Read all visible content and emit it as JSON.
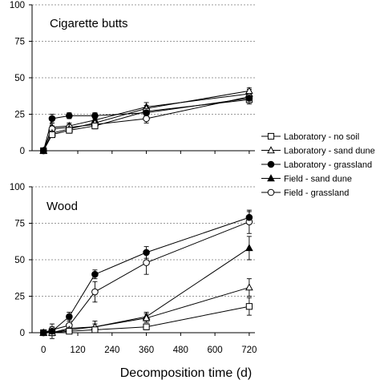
{
  "chart_data": {
    "type": "line",
    "xlabel": "Decomposition time (d)",
    "x_ticks": [
      0,
      120,
      240,
      360,
      480,
      600,
      720
    ],
    "xlim": [
      -40,
      740
    ],
    "legend": {
      "placement": "right",
      "entries": [
        {
          "name": "Laboratory - no soil",
          "marker": "square-open"
        },
        {
          "name": "Laboratory - sand dune",
          "marker": "triangle-open"
        },
        {
          "name": "Laboratory - grassland",
          "marker": "circle-filled"
        },
        {
          "name": "Field - sand dune",
          "marker": "triangle-filled"
        },
        {
          "name": "Field - grassland",
          "marker": "circle-open"
        }
      ]
    },
    "panels": [
      {
        "title": "Cigarette butts",
        "ylim": [
          0,
          100
        ],
        "y_ticks": [
          0,
          25,
          50,
          75,
          100
        ],
        "grid": "horizontal-dashed",
        "series": [
          {
            "name": "Laboratory - no soil",
            "marker": "square-open",
            "x": [
              0,
              30,
              90,
              180,
              360,
              720
            ],
            "y": [
              0,
              11,
              14,
              17,
              27,
              35
            ],
            "err": [
              0,
              2,
              2,
              2,
              2,
              3
            ]
          },
          {
            "name": "Laboratory - sand dune",
            "marker": "triangle-open",
            "x": [
              0,
              30,
              90,
              180,
              360,
              720
            ],
            "y": [
              0,
              12,
              15,
              19,
              29,
              41
            ],
            "err": [
              0,
              2,
              2,
              2,
              2,
              2
            ]
          },
          {
            "name": "Laboratory - grassland",
            "marker": "circle-filled",
            "x": [
              0,
              30,
              90,
              180,
              360,
              720
            ],
            "y": [
              0,
              22,
              24,
              24,
              26,
              36
            ],
            "err": [
              0,
              3,
              2,
              2,
              2,
              3
            ]
          },
          {
            "name": "Field - sand dune",
            "marker": "triangle-filled",
            "x": [
              0,
              30,
              90,
              180,
              360,
              720
            ],
            "y": [
              0,
              16,
              17,
              21,
              30,
              39
            ],
            "err": [
              0,
              3,
              2,
              3,
              3,
              3
            ]
          },
          {
            "name": "Field - grassland",
            "marker": "circle-open",
            "x": [
              0,
              30,
              90,
              180,
              360,
              720
            ],
            "y": [
              0,
              15,
              16,
              18,
              22,
              37
            ],
            "err": [
              0,
              2,
              2,
              2,
              3,
              4
            ]
          }
        ]
      },
      {
        "title": "Wood",
        "ylim": [
          0,
          100
        ],
        "y_ticks": [
          0,
          25,
          50,
          75,
          100
        ],
        "grid": "horizontal-dashed",
        "series": [
          {
            "name": "Laboratory - no soil",
            "marker": "square-open",
            "x": [
              0,
              30,
              90,
              180,
              360,
              720
            ],
            "y": [
              0,
              0,
              1,
              2,
              4,
              18
            ],
            "err": [
              0,
              1,
              1,
              1,
              2,
              6
            ]
          },
          {
            "name": "Laboratory - sand dune",
            "marker": "triangle-open",
            "x": [
              0,
              30,
              90,
              180,
              360,
              720
            ],
            "y": [
              0,
              0,
              2,
              4,
              10,
              31
            ],
            "err": [
              0,
              1,
              1,
              2,
              3,
              6
            ]
          },
          {
            "name": "Laboratory - grassland",
            "marker": "circle-filled",
            "x": [
              0,
              30,
              90,
              180,
              360,
              720
            ],
            "y": [
              0,
              1,
              11,
              40,
              55,
              79
            ],
            "err": [
              0,
              1,
              3,
              3,
              4,
              4
            ]
          },
          {
            "name": "Field - sand dune",
            "marker": "triangle-filled",
            "x": [
              0,
              30,
              90,
              180,
              360,
              720
            ],
            "y": [
              0,
              0,
              3,
              4,
              11,
              58
            ],
            "err": [
              0,
              4,
              3,
              4,
              3,
              8
            ]
          },
          {
            "name": "Field - grassland",
            "marker": "circle-open",
            "x": [
              0,
              30,
              90,
              180,
              360,
              720
            ],
            "y": [
              0,
              2,
              5,
              28,
              48,
              76
            ],
            "err": [
              0,
              4,
              4,
              7,
              8,
              8
            ]
          }
        ]
      }
    ]
  }
}
